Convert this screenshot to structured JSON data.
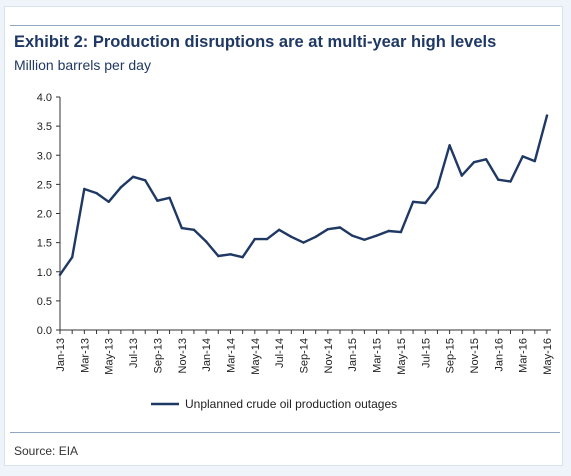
{
  "header": {
    "title": "Exhibit 2: Production disruptions are at multi-year high levels",
    "subtitle": "Million barrels per day"
  },
  "footer": {
    "source": "Source: EIA"
  },
  "colors": {
    "series": "#1f3864",
    "axis": "#333333",
    "background": "#eef4f9"
  },
  "chart_data": {
    "type": "line",
    "title": "Exhibit 2: Production disruptions are at multi-year high levels",
    "ylabel": "Million barrels per day",
    "xlabel": "",
    "ylim": [
      0,
      4.0
    ],
    "y_ticks": [
      "0.0",
      "0.5",
      "1.0",
      "1.5",
      "2.0",
      "2.5",
      "3.0",
      "3.5",
      "4.0"
    ],
    "x_tick_labels": [
      "Jan-13",
      "Mar-13",
      "May-13",
      "Jul-13",
      "Sep-13",
      "Nov-13",
      "Jan-14",
      "Mar-14",
      "May-14",
      "Jul-14",
      "Sep-14",
      "Nov-14",
      "Jan-15",
      "Mar-15",
      "May-15",
      "Jul-15",
      "Sep-15",
      "Nov-15",
      "Jan-16",
      "Mar-16",
      "May-16"
    ],
    "categories": [
      "Jan-13",
      "Feb-13",
      "Mar-13",
      "Apr-13",
      "May-13",
      "Jun-13",
      "Jul-13",
      "Aug-13",
      "Sep-13",
      "Oct-13",
      "Nov-13",
      "Dec-13",
      "Jan-14",
      "Feb-14",
      "Mar-14",
      "Apr-14",
      "May-14",
      "Jun-14",
      "Jul-14",
      "Aug-14",
      "Sep-14",
      "Oct-14",
      "Nov-14",
      "Dec-14",
      "Jan-15",
      "Feb-15",
      "Mar-15",
      "Apr-15",
      "May-15",
      "Jun-15",
      "Jul-15",
      "Aug-15",
      "Sep-15",
      "Oct-15",
      "Nov-15",
      "Dec-15",
      "Jan-16",
      "Feb-16",
      "Mar-16",
      "Apr-16",
      "May-16"
    ],
    "series": [
      {
        "name": "Unplanned crude oil production outages",
        "values": [
          0.95,
          1.25,
          2.42,
          2.35,
          2.2,
          2.45,
          2.63,
          2.57,
          2.22,
          2.27,
          1.75,
          1.72,
          1.52,
          1.27,
          1.3,
          1.25,
          1.56,
          1.56,
          1.72,
          1.6,
          1.5,
          1.6,
          1.73,
          1.76,
          1.62,
          1.55,
          1.62,
          1.7,
          1.68,
          2.2,
          2.18,
          2.45,
          3.17,
          2.65,
          2.88,
          2.93,
          2.58,
          2.55,
          2.98,
          2.9,
          3.68
        ]
      }
    ],
    "grid": false,
    "legend": "bottom"
  }
}
